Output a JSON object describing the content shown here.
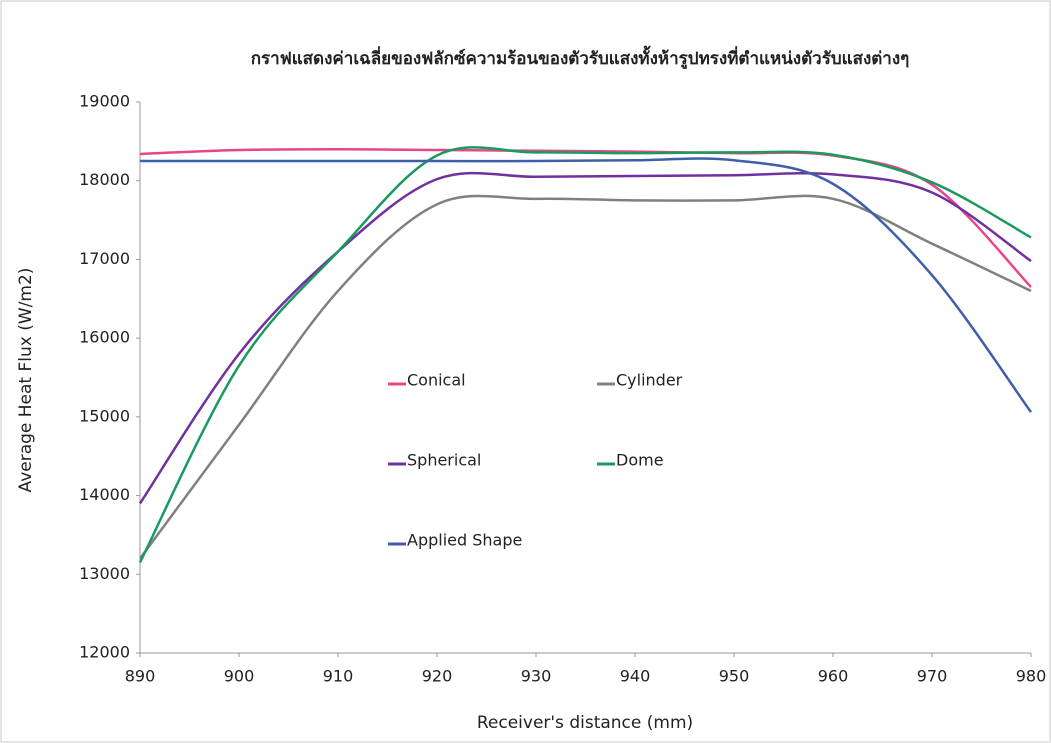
{
  "chart_data": {
    "type": "line",
    "title": "กราฟแสดงค่าเฉลี่ยของฟลักซ์ความร้อนของตัวรับแสงทั้งห้ารูปทรงที่ตำแหน่งตัวรับแสงต่างๆ",
    "x_label": "Receiver's distance (mm)",
    "y_label": "Average Heat Flux (W/m2)",
    "x": [
      890,
      900,
      910,
      920,
      930,
      940,
      950,
      960,
      970,
      980
    ],
    "series": [
      {
        "name": "Conical",
        "color": "#e8458b",
        "values": [
          18340,
          18390,
          18400,
          18390,
          18380,
          18370,
          18350,
          18320,
          17950,
          16650
        ]
      },
      {
        "name": "Cylinder",
        "color": "#808080",
        "values": [
          13200,
          14900,
          16600,
          17700,
          17770,
          17750,
          17750,
          17770,
          17200,
          16600
        ]
      },
      {
        "name": "Spherical",
        "color": "#7030a0",
        "values": [
          13900,
          15800,
          17100,
          18020,
          18050,
          18060,
          18070,
          18080,
          17850,
          16980
        ]
      },
      {
        "name": "Dome",
        "color": "#1a9a5c",
        "values": [
          13150,
          15650,
          17100,
          18320,
          18360,
          18350,
          18360,
          18330,
          17980,
          17280
        ]
      },
      {
        "name": "Applied Shape",
        "color": "#3f5fa8",
        "values": [
          18250,
          18250,
          18250,
          18250,
          18250,
          18260,
          18260,
          17960,
          16800,
          15060
        ]
      }
    ],
    "xlim": [
      890,
      980
    ],
    "xticks": [
      890,
      900,
      910,
      920,
      930,
      940,
      950,
      960,
      970,
      980
    ],
    "ylim": [
      12000,
      19000
    ],
    "yticks": [
      12000,
      13000,
      14000,
      15000,
      16000,
      17000,
      18000,
      19000
    ],
    "grid": false,
    "smooth": true
  }
}
